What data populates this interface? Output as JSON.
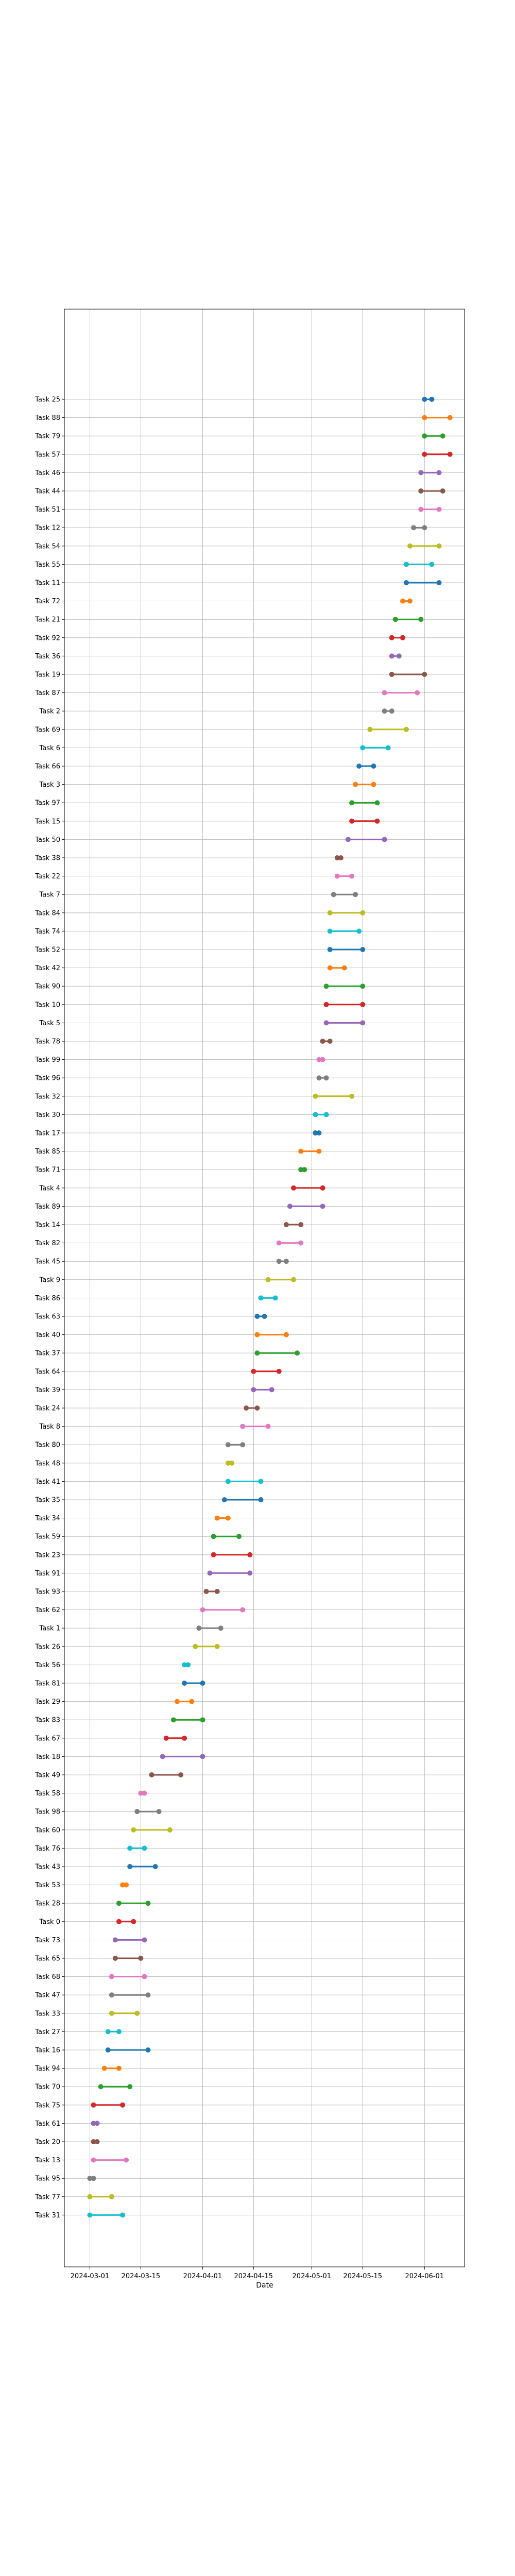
{
  "chart_data": {
    "type": "dumbbell",
    "title": "",
    "xlabel": "Date",
    "ylabel": "",
    "grid": true,
    "x_ticks": [
      "2024-03-01",
      "2024-03-15",
      "2024-04-01",
      "2024-04-15",
      "2024-05-01",
      "2024-05-15",
      "2024-06-01"
    ],
    "xlim": [
      "2024-02-23",
      "2024-06-12"
    ],
    "colors": [
      "#1f77b4",
      "#ff7f0e",
      "#2ca02c",
      "#d62728",
      "#9467bd",
      "#8c564b",
      "#e377c2",
      "#7f7f7f",
      "#bcbd22",
      "#17becf"
    ],
    "tasks": [
      {
        "task": "Task 25",
        "start": "2024-06-01",
        "end": "2024-06-03"
      },
      {
        "task": "Task 88",
        "start": "2024-06-01",
        "end": "2024-06-08"
      },
      {
        "task": "Task 79",
        "start": "2024-06-01",
        "end": "2024-06-06"
      },
      {
        "task": "Task 57",
        "start": "2024-06-01",
        "end": "2024-06-08"
      },
      {
        "task": "Task 46",
        "start": "2024-05-31",
        "end": "2024-06-05"
      },
      {
        "task": "Task 44",
        "start": "2024-05-31",
        "end": "2024-06-06"
      },
      {
        "task": "Task 51",
        "start": "2024-05-31",
        "end": "2024-06-05"
      },
      {
        "task": "Task 12",
        "start": "2024-05-29",
        "end": "2024-06-01"
      },
      {
        "task": "Task 54",
        "start": "2024-05-28",
        "end": "2024-06-05"
      },
      {
        "task": "Task 55",
        "start": "2024-05-27",
        "end": "2024-06-03"
      },
      {
        "task": "Task 11",
        "start": "2024-05-27",
        "end": "2024-06-05"
      },
      {
        "task": "Task 72",
        "start": "2024-05-26",
        "end": "2024-05-28"
      },
      {
        "task": "Task 21",
        "start": "2024-05-24",
        "end": "2024-05-31"
      },
      {
        "task": "Task 92",
        "start": "2024-05-23",
        "end": "2024-05-26"
      },
      {
        "task": "Task 36",
        "start": "2024-05-23",
        "end": "2024-05-25"
      },
      {
        "task": "Task 19",
        "start": "2024-05-23",
        "end": "2024-06-01"
      },
      {
        "task": "Task 87",
        "start": "2024-05-21",
        "end": "2024-05-30"
      },
      {
        "task": "Task 2",
        "start": "2024-05-21",
        "end": "2024-05-23"
      },
      {
        "task": "Task 69",
        "start": "2024-05-17",
        "end": "2024-05-27"
      },
      {
        "task": "Task 6",
        "start": "2024-05-15",
        "end": "2024-05-22"
      },
      {
        "task": "Task 66",
        "start": "2024-05-14",
        "end": "2024-05-18"
      },
      {
        "task": "Task 3",
        "start": "2024-05-13",
        "end": "2024-05-18"
      },
      {
        "task": "Task 97",
        "start": "2024-05-12",
        "end": "2024-05-19"
      },
      {
        "task": "Task 15",
        "start": "2024-05-12",
        "end": "2024-05-19"
      },
      {
        "task": "Task 50",
        "start": "2024-05-11",
        "end": "2024-05-21"
      },
      {
        "task": "Task 38",
        "start": "2024-05-08",
        "end": "2024-05-09"
      },
      {
        "task": "Task 22",
        "start": "2024-05-08",
        "end": "2024-05-12"
      },
      {
        "task": "Task 7",
        "start": "2024-05-07",
        "end": "2024-05-13"
      },
      {
        "task": "Task 84",
        "start": "2024-05-06",
        "end": "2024-05-15"
      },
      {
        "task": "Task 74",
        "start": "2024-05-06",
        "end": "2024-05-14"
      },
      {
        "task": "Task 52",
        "start": "2024-05-06",
        "end": "2024-05-15"
      },
      {
        "task": "Task 42",
        "start": "2024-05-06",
        "end": "2024-05-10"
      },
      {
        "task": "Task 90",
        "start": "2024-05-05",
        "end": "2024-05-15"
      },
      {
        "task": "Task 10",
        "start": "2024-05-05",
        "end": "2024-05-15"
      },
      {
        "task": "Task 5",
        "start": "2024-05-05",
        "end": "2024-05-15"
      },
      {
        "task": "Task 78",
        "start": "2024-05-04",
        "end": "2024-05-06"
      },
      {
        "task": "Task 99",
        "start": "2024-05-03",
        "end": "2024-05-04"
      },
      {
        "task": "Task 96",
        "start": "2024-05-03",
        "end": "2024-05-05"
      },
      {
        "task": "Task 32",
        "start": "2024-05-02",
        "end": "2024-05-12"
      },
      {
        "task": "Task 30",
        "start": "2024-05-02",
        "end": "2024-05-05"
      },
      {
        "task": "Task 17",
        "start": "2024-05-02",
        "end": "2024-05-03"
      },
      {
        "task": "Task 85",
        "start": "2024-04-28",
        "end": "2024-05-03"
      },
      {
        "task": "Task 71",
        "start": "2024-04-28",
        "end": "2024-04-29"
      },
      {
        "task": "Task 4",
        "start": "2024-04-26",
        "end": "2024-05-04"
      },
      {
        "task": "Task 89",
        "start": "2024-04-25",
        "end": "2024-05-04"
      },
      {
        "task": "Task 14",
        "start": "2024-04-24",
        "end": "2024-04-28"
      },
      {
        "task": "Task 82",
        "start": "2024-04-22",
        "end": "2024-04-28"
      },
      {
        "task": "Task 45",
        "start": "2024-04-22",
        "end": "2024-04-24"
      },
      {
        "task": "Task 9",
        "start": "2024-04-19",
        "end": "2024-04-26"
      },
      {
        "task": "Task 86",
        "start": "2024-04-17",
        "end": "2024-04-21"
      },
      {
        "task": "Task 63",
        "start": "2024-04-16",
        "end": "2024-04-18"
      },
      {
        "task": "Task 40",
        "start": "2024-04-16",
        "end": "2024-04-24"
      },
      {
        "task": "Task 37",
        "start": "2024-04-16",
        "end": "2024-04-27"
      },
      {
        "task": "Task 64",
        "start": "2024-04-15",
        "end": "2024-04-22"
      },
      {
        "task": "Task 39",
        "start": "2024-04-15",
        "end": "2024-04-20"
      },
      {
        "task": "Task 24",
        "start": "2024-04-13",
        "end": "2024-04-16"
      },
      {
        "task": "Task 8",
        "start": "2024-04-12",
        "end": "2024-04-19"
      },
      {
        "task": "Task 80",
        "start": "2024-04-08",
        "end": "2024-04-12"
      },
      {
        "task": "Task 48",
        "start": "2024-04-08",
        "end": "2024-04-09"
      },
      {
        "task": "Task 41",
        "start": "2024-04-08",
        "end": "2024-04-17"
      },
      {
        "task": "Task 35",
        "start": "2024-04-07",
        "end": "2024-04-17"
      },
      {
        "task": "Task 34",
        "start": "2024-04-05",
        "end": "2024-04-08"
      },
      {
        "task": "Task 59",
        "start": "2024-04-04",
        "end": "2024-04-11"
      },
      {
        "task": "Task 23",
        "start": "2024-04-04",
        "end": "2024-04-14"
      },
      {
        "task": "Task 91",
        "start": "2024-04-03",
        "end": "2024-04-14"
      },
      {
        "task": "Task 93",
        "start": "2024-04-02",
        "end": "2024-04-05"
      },
      {
        "task": "Task 62",
        "start": "2024-04-01",
        "end": "2024-04-12"
      },
      {
        "task": "Task 1",
        "start": "2024-03-31",
        "end": "2024-04-06"
      },
      {
        "task": "Task 26",
        "start": "2024-03-30",
        "end": "2024-04-05"
      },
      {
        "task": "Task 56",
        "start": "2024-03-27",
        "end": "2024-03-28"
      },
      {
        "task": "Task 81",
        "start": "2024-03-27",
        "end": "2024-04-01"
      },
      {
        "task": "Task 29",
        "start": "2024-03-25",
        "end": "2024-03-29"
      },
      {
        "task": "Task 83",
        "start": "2024-03-24",
        "end": "2024-04-01"
      },
      {
        "task": "Task 67",
        "start": "2024-03-22",
        "end": "2024-03-27"
      },
      {
        "task": "Task 18",
        "start": "2024-03-21",
        "end": "2024-04-01"
      },
      {
        "task": "Task 49",
        "start": "2024-03-18",
        "end": "2024-03-26"
      },
      {
        "task": "Task 58",
        "start": "2024-03-15",
        "end": "2024-03-16"
      },
      {
        "task": "Task 98",
        "start": "2024-03-14",
        "end": "2024-03-20"
      },
      {
        "task": "Task 60",
        "start": "2024-03-13",
        "end": "2024-03-23"
      },
      {
        "task": "Task 76",
        "start": "2024-03-12",
        "end": "2024-03-16"
      },
      {
        "task": "Task 43",
        "start": "2024-03-12",
        "end": "2024-03-19"
      },
      {
        "task": "Task 53",
        "start": "2024-03-10",
        "end": "2024-03-11"
      },
      {
        "task": "Task 28",
        "start": "2024-03-09",
        "end": "2024-03-17"
      },
      {
        "task": "Task 0",
        "start": "2024-03-09",
        "end": "2024-03-13"
      },
      {
        "task": "Task 73",
        "start": "2024-03-08",
        "end": "2024-03-16"
      },
      {
        "task": "Task 65",
        "start": "2024-03-08",
        "end": "2024-03-15"
      },
      {
        "task": "Task 68",
        "start": "2024-03-07",
        "end": "2024-03-16"
      },
      {
        "task": "Task 47",
        "start": "2024-03-07",
        "end": "2024-03-17"
      },
      {
        "task": "Task 33",
        "start": "2024-03-07",
        "end": "2024-03-14"
      },
      {
        "task": "Task 27",
        "start": "2024-03-06",
        "end": "2024-03-09"
      },
      {
        "task": "Task 16",
        "start": "2024-03-06",
        "end": "2024-03-17"
      },
      {
        "task": "Task 94",
        "start": "2024-03-05",
        "end": "2024-03-09"
      },
      {
        "task": "Task 70",
        "start": "2024-03-04",
        "end": "2024-03-12"
      },
      {
        "task": "Task 75",
        "start": "2024-03-02",
        "end": "2024-03-10"
      },
      {
        "task": "Task 61",
        "start": "2024-03-02",
        "end": "2024-03-03"
      },
      {
        "task": "Task 20",
        "start": "2024-03-02",
        "end": "2024-03-03"
      },
      {
        "task": "Task 13",
        "start": "2024-03-02",
        "end": "2024-03-11"
      },
      {
        "task": "Task 95",
        "start": "2024-03-01",
        "end": "2024-03-02"
      },
      {
        "task": "Task 77",
        "start": "2024-03-01",
        "end": "2024-03-07"
      },
      {
        "task": "Task 31",
        "start": "2024-03-01",
        "end": "2024-03-10"
      }
    ]
  }
}
